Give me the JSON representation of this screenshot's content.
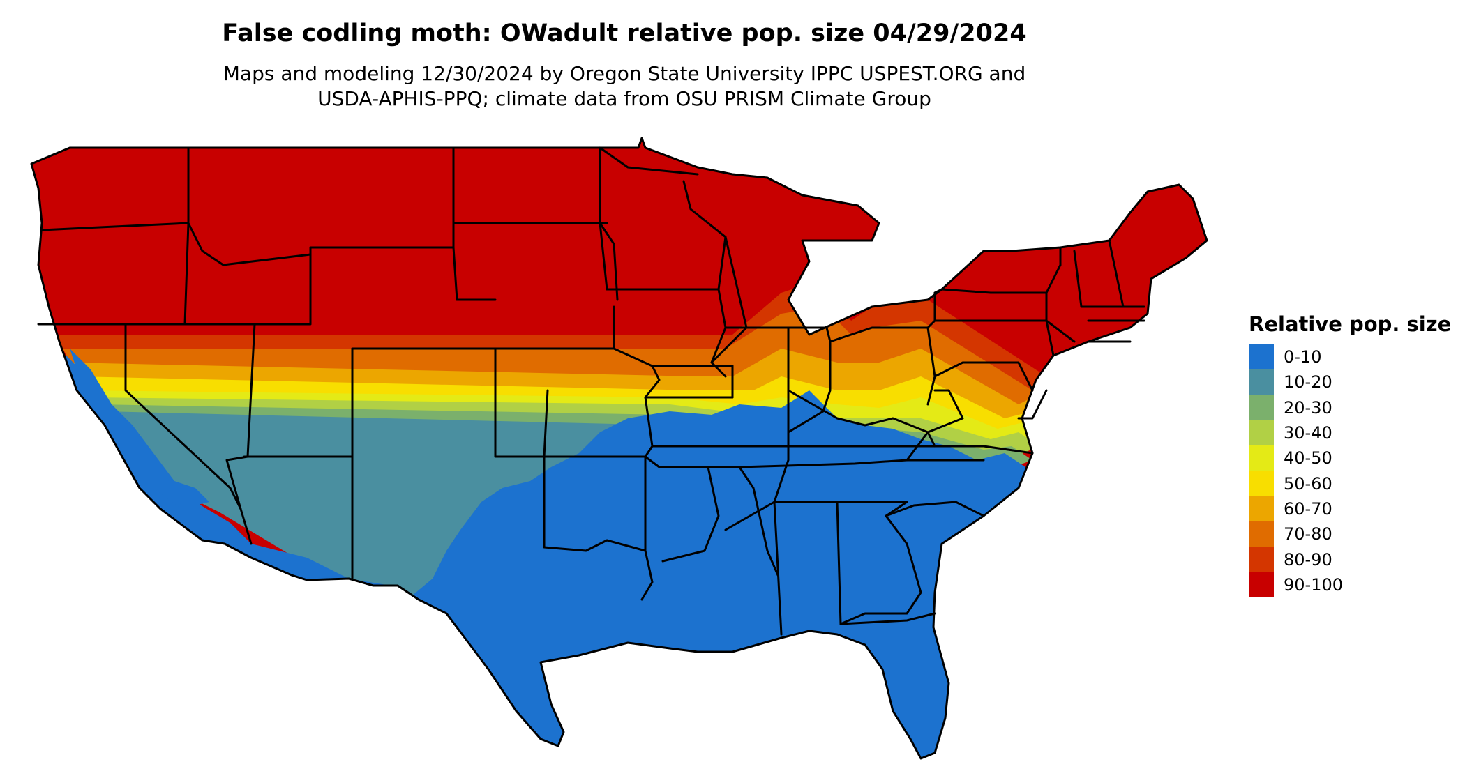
{
  "title": "False codling moth: OWadult relative pop. size 04/29/2024",
  "subtitle_lines": [
    "Maps and modeling 12/30/2024 by Oregon State University IPPC USPEST.ORG and",
    "USDA-APHIS-PPQ; climate data from OSU PRISM Climate Group"
  ],
  "legend": {
    "title": "Relative pop. size",
    "items": [
      {
        "label": "0-10",
        "color": "#1c72cf"
      },
      {
        "label": "10-20",
        "color": "#4a8fa0"
      },
      {
        "label": "20-30",
        "color": "#7bb06c"
      },
      {
        "label": "30-40",
        "color": "#b1d045"
      },
      {
        "label": "40-50",
        "color": "#e4ea16"
      },
      {
        "label": "50-60",
        "color": "#f8de00"
      },
      {
        "label": "60-70",
        "color": "#eca600"
      },
      {
        "label": "70-80",
        "color": "#e06c00"
      },
      {
        "label": "80-90",
        "color": "#d43600"
      },
      {
        "label": "90-100",
        "color": "#c80000"
      }
    ]
  }
}
